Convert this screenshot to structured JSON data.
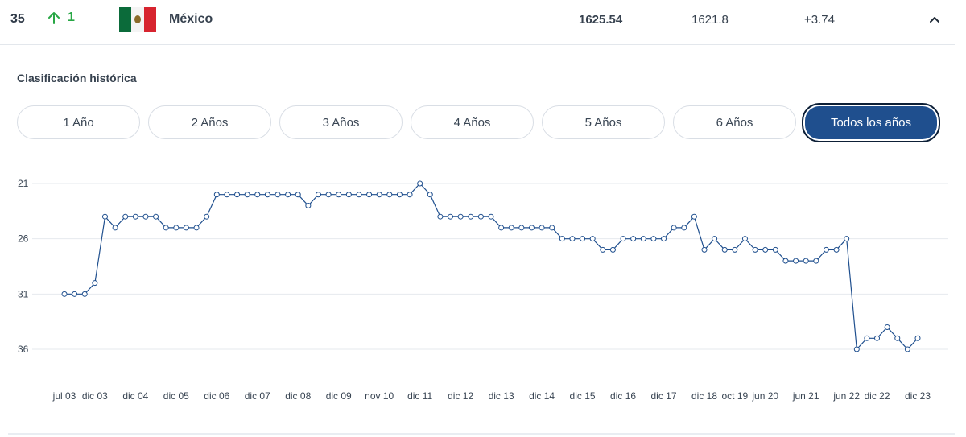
{
  "row": {
    "rank": "35",
    "change": "1",
    "country": "México",
    "points": "1625.54",
    "previous_points": "1621.8",
    "diff": "+3.74"
  },
  "section_title": "Clasificación histórica",
  "range_buttons": [
    "1 Año",
    "2 Años",
    "3 Años",
    "4 Años",
    "5 Años",
    "6 Años",
    "Todos los años"
  ],
  "active_range": "Todos los años",
  "colors": {
    "line": "#1f4f8e",
    "up": "#28a745",
    "active_button": "#1f4f8e"
  },
  "chart_data": {
    "type": "line",
    "title": "",
    "xlabel": "",
    "ylabel": "",
    "y_reversed": true,
    "ylim": [
      21,
      36
    ],
    "y_ticks": [
      21,
      26,
      31,
      36
    ],
    "grid": true,
    "x_tick_labels": [
      "jul 03",
      "dic 03",
      "dic 04",
      "dic 05",
      "dic 06",
      "dic 07",
      "dic 08",
      "dic 09",
      "nov 10",
      "dic 11",
      "dic 12",
      "dic 13",
      "dic 14",
      "dic 15",
      "dic 16",
      "dic 17",
      "dic 18",
      "oct 19",
      "jun 20",
      "jun 21",
      "jun 22",
      "dic 22",
      "dic 23"
    ],
    "x_tick_index": [
      0,
      3,
      7,
      11,
      15,
      19,
      23,
      27,
      31,
      35,
      39,
      43,
      47,
      51,
      55,
      59,
      63,
      66,
      69,
      73,
      77,
      80,
      84
    ],
    "values": [
      31,
      31,
      31,
      30,
      24,
      25,
      24,
      24,
      24,
      24,
      25,
      25,
      25,
      25,
      24,
      22,
      22,
      22,
      22,
      22,
      22,
      22,
      22,
      22,
      23,
      22,
      22,
      22,
      22,
      22,
      22,
      22,
      22,
      22,
      22,
      21,
      22,
      24,
      24,
      24,
      24,
      24,
      24,
      25,
      25,
      25,
      25,
      25,
      25,
      26,
      26,
      26,
      26,
      27,
      27,
      26,
      26,
      26,
      26,
      26,
      25,
      25,
      24,
      27,
      26,
      27,
      27,
      26,
      27,
      27,
      27,
      28,
      28,
      28,
      28,
      27,
      27,
      26,
      36,
      35,
      35,
      34,
      35,
      36,
      35
    ]
  }
}
